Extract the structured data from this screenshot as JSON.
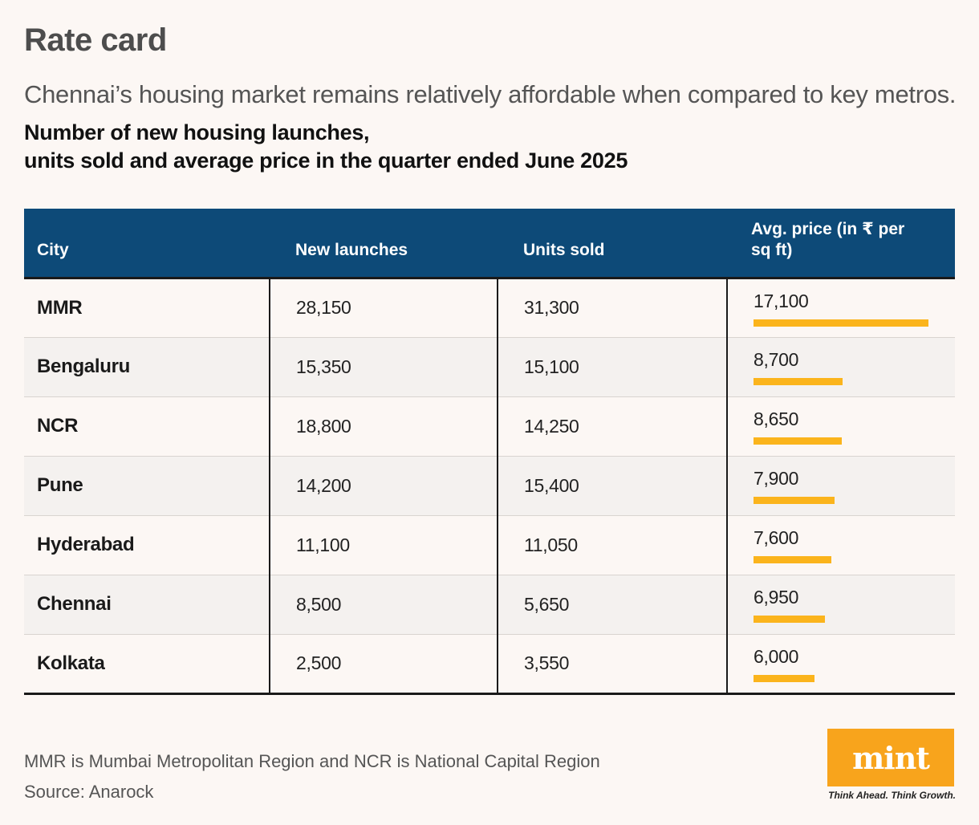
{
  "title": "Rate card",
  "subtitle": "Chennai’s housing market remains relatively affordable when compared to key metros.",
  "chart_title_line1": "Number of new housing launches,",
  "chart_title_line2": "units sold and average price in the quarter ended June 2025",
  "chart_data": {
    "type": "table",
    "columns": [
      "City",
      "New launches",
      "Units sold",
      "Avg. price (in ₹ per sq ft)"
    ],
    "rows": [
      {
        "city": "MMR",
        "new_launches": "28,150",
        "units_sold": "31,300",
        "avg_price": "17,100",
        "avg_price_value": 17100
      },
      {
        "city": "Bengaluru",
        "new_launches": "15,350",
        "units_sold": "15,100",
        "avg_price": "8,700",
        "avg_price_value": 8700
      },
      {
        "city": "NCR",
        "new_launches": "18,800",
        "units_sold": "14,250",
        "avg_price": "8,650",
        "avg_price_value": 8650
      },
      {
        "city": "Pune",
        "new_launches": "14,200",
        "units_sold": "15,400",
        "avg_price": "7,900",
        "avg_price_value": 7900
      },
      {
        "city": "Hyderabad",
        "new_launches": "11,100",
        "units_sold": "11,050",
        "avg_price": "7,600",
        "avg_price_value": 7600
      },
      {
        "city": "Chennai",
        "new_launches": "8,500",
        "units_sold": "5,650",
        "avg_price": "6,950",
        "avg_price_value": 6950
      },
      {
        "city": "Kolkata",
        "new_launches": "2,500",
        "units_sold": "3,550",
        "avg_price": "6,000",
        "avg_price_value": 6000
      }
    ],
    "bar_max": 17100,
    "bar_color": "#fbb41c",
    "header_color": "#0d4a78"
  },
  "notes": {
    "line1": "MMR is Mumbai Metropolitan Region and NCR is National Capital Region",
    "line2": "Source: Anarock"
  },
  "brand": {
    "logo_text": "mint",
    "tagline": "Think Ahead. Think Growth.",
    "color": "#f8a41c"
  }
}
